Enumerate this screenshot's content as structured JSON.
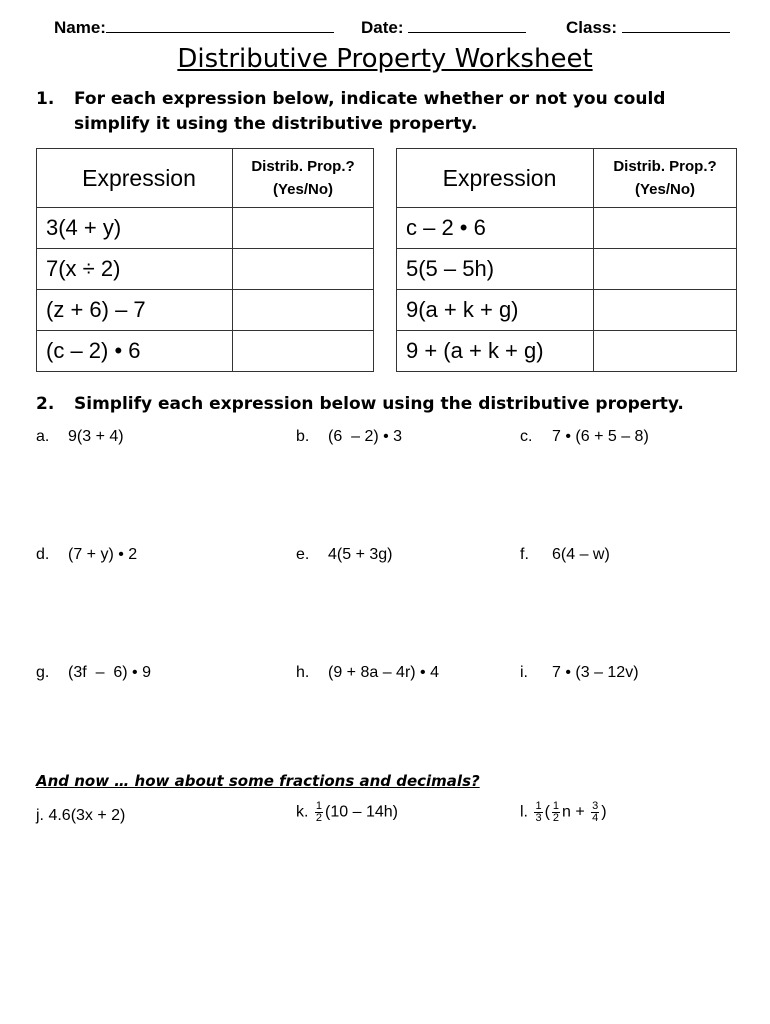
{
  "header": {
    "name_label": "Name:",
    "date_label": "Date:",
    "class_label": "Class:"
  },
  "title": "Distributive Property Worksheet",
  "q1": {
    "number": "1.",
    "text_line1": "For each expression below, indicate whether or not you could",
    "text_line2": "simplify it using the distributive property."
  },
  "tables": [
    {
      "col1": "Expression",
      "col2_line1": "Distrib. Prop.?",
      "col2_line2": "(Yes/No)",
      "rows": [
        "3(4 + y)",
        "7(x ÷ 2)",
        "(z + 6) – 7",
        "(c – 2) • 6"
      ]
    },
    {
      "col1": "Expression",
      "col2_line1": "Distrib. Prop.?",
      "col2_line2": "(Yes/No)",
      "rows": [
        "c – 2 • 6",
        "5(5 – 5h)",
        "9(a + k + g)",
        "9 + (a + k + g)"
      ]
    }
  ],
  "q2": {
    "number": "2.",
    "text": "Simplify each expression below using the distributive property."
  },
  "problems": [
    {
      "label": "a.",
      "expr": "9(3 + 4)"
    },
    {
      "label": "b.",
      "expr": "(6  – 2) • 3"
    },
    {
      "label": "c.",
      "expr": "7 • (6 + 5 – 8)"
    },
    {
      "label": "d.",
      "expr": "(7 + y) • 2"
    },
    {
      "label": "e.",
      "expr": "4(5 + 3g)"
    },
    {
      "label": "f.",
      "expr": "6(4 – w)"
    },
    {
      "label": "g.",
      "expr": "(3f  –  6) • 9"
    },
    {
      "label": "h.",
      "expr": "(9 + 8a – 4r) • 4"
    },
    {
      "label": "i.",
      "expr": "7 • (3 – 12v)"
    }
  ],
  "subheading": "And now … how about some fractions and decimals?",
  "fraction_problems": {
    "j": {
      "label": "j.",
      "expr": "4.6(3x + 2)"
    },
    "k": {
      "label": "k.",
      "coef_num": "1",
      "coef_den": "2",
      "expr": "(10 – 14h)"
    },
    "l": {
      "label": "l.",
      "coef_num": "1",
      "coef_den": "3",
      "open": "(",
      "inner_num": "1",
      "inner_den": "2",
      "mid": "n + ",
      "last_num": "3",
      "last_den": "4",
      "close": ")"
    }
  }
}
